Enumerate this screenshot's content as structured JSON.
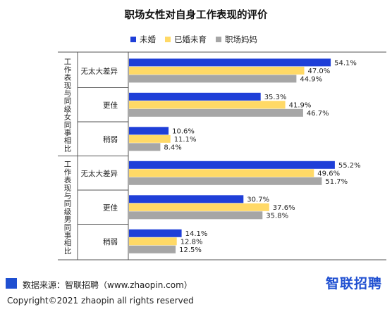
{
  "chart_data": {
    "type": "bar",
    "orientation": "horizontal",
    "title": "职场女性对自身工作表现的评价",
    "legend_position": "top",
    "xlim": [
      0,
      60
    ],
    "grid": false,
    "groups": [
      {
        "label": "工作表现与同级女同事相比",
        "categories": [
          {
            "label": "无太大差异",
            "values": [
              54.1,
              47.0,
              44.9
            ],
            "labels": [
              "54.1%",
              "47.0%",
              "44.9%"
            ]
          },
          {
            "label": "更佳",
            "values": [
              35.3,
              41.9,
              46.7
            ],
            "labels": [
              "35.3%",
              "41.9%",
              "46.7%"
            ]
          },
          {
            "label": "稍弱",
            "values": [
              10.6,
              11.1,
              8.4
            ],
            "labels": [
              "10.6%",
              "11.1%",
              "8.4%"
            ]
          }
        ]
      },
      {
        "label": "工作表现与同级男同事相比",
        "categories": [
          {
            "label": "无太大差异",
            "values": [
              55.2,
              49.6,
              51.7
            ],
            "labels": [
              "55.2%",
              "49.6%",
              "51.7%"
            ]
          },
          {
            "label": "更佳",
            "values": [
              30.7,
              37.6,
              35.8
            ],
            "labels": [
              "30.7%",
              "37.6%",
              "35.8%"
            ]
          },
          {
            "label": "稍弱",
            "values": [
              14.1,
              12.8,
              12.5
            ],
            "labels": [
              "14.1%",
              "12.8%",
              "12.5%"
            ]
          }
        ]
      }
    ],
    "series": [
      {
        "name": "未婚",
        "color": "#1f3fd8"
      },
      {
        "name": "已婚未育",
        "color": "#ffd966"
      },
      {
        "name": "职场妈妈",
        "color": "#a6a6a6"
      }
    ]
  },
  "footer": {
    "source": "数据来源：智联招聘（www.zhaopin.com）",
    "copyright": "Copyright©2021 zhaopin all rights reserved",
    "logo": "智联招聘",
    "accent_color": "#1f4fd1"
  }
}
